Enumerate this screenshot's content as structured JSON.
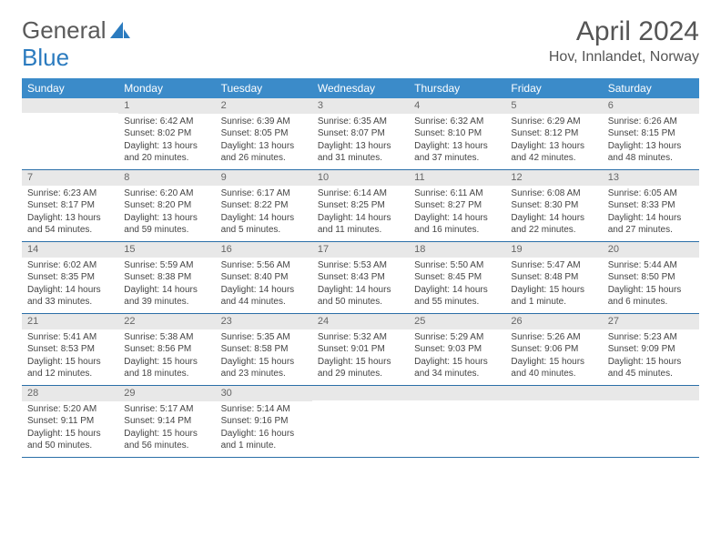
{
  "logo": {
    "text1": "General",
    "text2": "Blue"
  },
  "title": "April 2024",
  "location": "Hov, Innlandet, Norway",
  "colors": {
    "header_bg": "#3b8bc9",
    "header_text": "#ffffff",
    "daynum_bg": "#e8e8e8",
    "week_border": "#2b6fa8",
    "logo_gray": "#5a5a5a",
    "logo_blue": "#2b7bbf"
  },
  "weekdays": [
    "Sunday",
    "Monday",
    "Tuesday",
    "Wednesday",
    "Thursday",
    "Friday",
    "Saturday"
  ],
  "weeks": [
    [
      {
        "day": "",
        "sunrise": "",
        "sunset": "",
        "daylight1": "",
        "daylight2": ""
      },
      {
        "day": "1",
        "sunrise": "Sunrise: 6:42 AM",
        "sunset": "Sunset: 8:02 PM",
        "daylight1": "Daylight: 13 hours",
        "daylight2": "and 20 minutes."
      },
      {
        "day": "2",
        "sunrise": "Sunrise: 6:39 AM",
        "sunset": "Sunset: 8:05 PM",
        "daylight1": "Daylight: 13 hours",
        "daylight2": "and 26 minutes."
      },
      {
        "day": "3",
        "sunrise": "Sunrise: 6:35 AM",
        "sunset": "Sunset: 8:07 PM",
        "daylight1": "Daylight: 13 hours",
        "daylight2": "and 31 minutes."
      },
      {
        "day": "4",
        "sunrise": "Sunrise: 6:32 AM",
        "sunset": "Sunset: 8:10 PM",
        "daylight1": "Daylight: 13 hours",
        "daylight2": "and 37 minutes."
      },
      {
        "day": "5",
        "sunrise": "Sunrise: 6:29 AM",
        "sunset": "Sunset: 8:12 PM",
        "daylight1": "Daylight: 13 hours",
        "daylight2": "and 42 minutes."
      },
      {
        "day": "6",
        "sunrise": "Sunrise: 6:26 AM",
        "sunset": "Sunset: 8:15 PM",
        "daylight1": "Daylight: 13 hours",
        "daylight2": "and 48 minutes."
      }
    ],
    [
      {
        "day": "7",
        "sunrise": "Sunrise: 6:23 AM",
        "sunset": "Sunset: 8:17 PM",
        "daylight1": "Daylight: 13 hours",
        "daylight2": "and 54 minutes."
      },
      {
        "day": "8",
        "sunrise": "Sunrise: 6:20 AM",
        "sunset": "Sunset: 8:20 PM",
        "daylight1": "Daylight: 13 hours",
        "daylight2": "and 59 minutes."
      },
      {
        "day": "9",
        "sunrise": "Sunrise: 6:17 AM",
        "sunset": "Sunset: 8:22 PM",
        "daylight1": "Daylight: 14 hours",
        "daylight2": "and 5 minutes."
      },
      {
        "day": "10",
        "sunrise": "Sunrise: 6:14 AM",
        "sunset": "Sunset: 8:25 PM",
        "daylight1": "Daylight: 14 hours",
        "daylight2": "and 11 minutes."
      },
      {
        "day": "11",
        "sunrise": "Sunrise: 6:11 AM",
        "sunset": "Sunset: 8:27 PM",
        "daylight1": "Daylight: 14 hours",
        "daylight2": "and 16 minutes."
      },
      {
        "day": "12",
        "sunrise": "Sunrise: 6:08 AM",
        "sunset": "Sunset: 8:30 PM",
        "daylight1": "Daylight: 14 hours",
        "daylight2": "and 22 minutes."
      },
      {
        "day": "13",
        "sunrise": "Sunrise: 6:05 AM",
        "sunset": "Sunset: 8:33 PM",
        "daylight1": "Daylight: 14 hours",
        "daylight2": "and 27 minutes."
      }
    ],
    [
      {
        "day": "14",
        "sunrise": "Sunrise: 6:02 AM",
        "sunset": "Sunset: 8:35 PM",
        "daylight1": "Daylight: 14 hours",
        "daylight2": "and 33 minutes."
      },
      {
        "day": "15",
        "sunrise": "Sunrise: 5:59 AM",
        "sunset": "Sunset: 8:38 PM",
        "daylight1": "Daylight: 14 hours",
        "daylight2": "and 39 minutes."
      },
      {
        "day": "16",
        "sunrise": "Sunrise: 5:56 AM",
        "sunset": "Sunset: 8:40 PM",
        "daylight1": "Daylight: 14 hours",
        "daylight2": "and 44 minutes."
      },
      {
        "day": "17",
        "sunrise": "Sunrise: 5:53 AM",
        "sunset": "Sunset: 8:43 PM",
        "daylight1": "Daylight: 14 hours",
        "daylight2": "and 50 minutes."
      },
      {
        "day": "18",
        "sunrise": "Sunrise: 5:50 AM",
        "sunset": "Sunset: 8:45 PM",
        "daylight1": "Daylight: 14 hours",
        "daylight2": "and 55 minutes."
      },
      {
        "day": "19",
        "sunrise": "Sunrise: 5:47 AM",
        "sunset": "Sunset: 8:48 PM",
        "daylight1": "Daylight: 15 hours",
        "daylight2": "and 1 minute."
      },
      {
        "day": "20",
        "sunrise": "Sunrise: 5:44 AM",
        "sunset": "Sunset: 8:50 PM",
        "daylight1": "Daylight: 15 hours",
        "daylight2": "and 6 minutes."
      }
    ],
    [
      {
        "day": "21",
        "sunrise": "Sunrise: 5:41 AM",
        "sunset": "Sunset: 8:53 PM",
        "daylight1": "Daylight: 15 hours",
        "daylight2": "and 12 minutes."
      },
      {
        "day": "22",
        "sunrise": "Sunrise: 5:38 AM",
        "sunset": "Sunset: 8:56 PM",
        "daylight1": "Daylight: 15 hours",
        "daylight2": "and 18 minutes."
      },
      {
        "day": "23",
        "sunrise": "Sunrise: 5:35 AM",
        "sunset": "Sunset: 8:58 PM",
        "daylight1": "Daylight: 15 hours",
        "daylight2": "and 23 minutes."
      },
      {
        "day": "24",
        "sunrise": "Sunrise: 5:32 AM",
        "sunset": "Sunset: 9:01 PM",
        "daylight1": "Daylight: 15 hours",
        "daylight2": "and 29 minutes."
      },
      {
        "day": "25",
        "sunrise": "Sunrise: 5:29 AM",
        "sunset": "Sunset: 9:03 PM",
        "daylight1": "Daylight: 15 hours",
        "daylight2": "and 34 minutes."
      },
      {
        "day": "26",
        "sunrise": "Sunrise: 5:26 AM",
        "sunset": "Sunset: 9:06 PM",
        "daylight1": "Daylight: 15 hours",
        "daylight2": "and 40 minutes."
      },
      {
        "day": "27",
        "sunrise": "Sunrise: 5:23 AM",
        "sunset": "Sunset: 9:09 PM",
        "daylight1": "Daylight: 15 hours",
        "daylight2": "and 45 minutes."
      }
    ],
    [
      {
        "day": "28",
        "sunrise": "Sunrise: 5:20 AM",
        "sunset": "Sunset: 9:11 PM",
        "daylight1": "Daylight: 15 hours",
        "daylight2": "and 50 minutes."
      },
      {
        "day": "29",
        "sunrise": "Sunrise: 5:17 AM",
        "sunset": "Sunset: 9:14 PM",
        "daylight1": "Daylight: 15 hours",
        "daylight2": "and 56 minutes."
      },
      {
        "day": "30",
        "sunrise": "Sunrise: 5:14 AM",
        "sunset": "Sunset: 9:16 PM",
        "daylight1": "Daylight: 16 hours",
        "daylight2": "and 1 minute."
      },
      {
        "day": "",
        "sunrise": "",
        "sunset": "",
        "daylight1": "",
        "daylight2": ""
      },
      {
        "day": "",
        "sunrise": "",
        "sunset": "",
        "daylight1": "",
        "daylight2": ""
      },
      {
        "day": "",
        "sunrise": "",
        "sunset": "",
        "daylight1": "",
        "daylight2": ""
      },
      {
        "day": "",
        "sunrise": "",
        "sunset": "",
        "daylight1": "",
        "daylight2": ""
      }
    ]
  ]
}
